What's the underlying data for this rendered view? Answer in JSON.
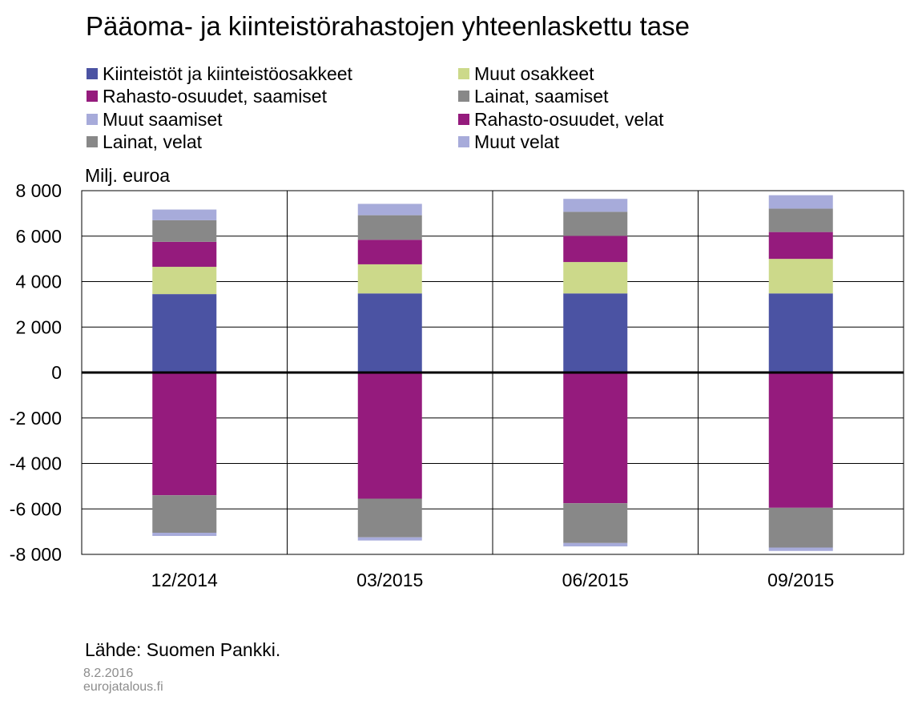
{
  "title": "Pääoma- ja kiinteistörahastojen yhteenlaskettu tase",
  "unit_label": "Milj. euroa",
  "source": "Lähde: Suomen Pankki.",
  "date": "8.2.2016",
  "site": "eurojatalous.fi",
  "legend": [
    {
      "label": "Kiinteistöt ja kiinteistöosakkeet",
      "color": "#4b53a3"
    },
    {
      "label": "Muut osakkeet",
      "color": "#ccd98a"
    },
    {
      "label": "Rahasto-osuudet, saamiset",
      "color": "#951b7d"
    },
    {
      "label": "Lainat, saamiset",
      "color": "#888888"
    },
    {
      "label": "Muut saamiset",
      "color": "#a7abda"
    },
    {
      "label": "Rahasto-osuudet, velat",
      "color": "#951b7d"
    },
    {
      "label": "Lainat, velat",
      "color": "#888888"
    },
    {
      "label": "Muut velat",
      "color": "#a7abda"
    }
  ],
  "chart_data": {
    "type": "bar",
    "stacked": true,
    "categories": [
      "12/2014",
      "03/2015",
      "06/2015",
      "09/2015"
    ],
    "ylim": [
      -8000,
      8000
    ],
    "yticks": [
      8000,
      6000,
      4000,
      2000,
      0,
      -2000,
      -4000,
      -6000,
      -8000
    ],
    "ytick_labels": [
      "8 000",
      "6 000",
      "4 000",
      "2 000",
      "0",
      "-2 000",
      "-4 000",
      "-6 000",
      "-8 000"
    ],
    "grid": true,
    "legend_position": "top",
    "series": [
      {
        "name": "Kiinteistöt ja kiinteistöosakkeet",
        "color": "#4b53a3",
        "values": [
          3450,
          3480,
          3480,
          3480
        ]
      },
      {
        "name": "Muut osakkeet",
        "color": "#ccd98a",
        "values": [
          1200,
          1280,
          1380,
          1520
        ]
      },
      {
        "name": "Rahasto-osuudet, saamiset",
        "color": "#951b7d",
        "values": [
          1100,
          1080,
          1150,
          1180
        ]
      },
      {
        "name": "Lainat, saamiset",
        "color": "#888888",
        "values": [
          950,
          1080,
          1060,
          1030
        ]
      },
      {
        "name": "Muut saamiset",
        "color": "#a7abda",
        "values": [
          470,
          500,
          570,
          590
        ]
      },
      {
        "name": "Rahasto-osuudet, velat",
        "color": "#951b7d",
        "values": [
          -5400,
          -5550,
          -5750,
          -5950
        ]
      },
      {
        "name": "Lainat, velat",
        "color": "#888888",
        "values": [
          -1650,
          -1700,
          -1750,
          -1750
        ]
      },
      {
        "name": "Muut velat",
        "color": "#a7abda",
        "values": [
          -140,
          -140,
          -150,
          -150
        ]
      }
    ]
  }
}
